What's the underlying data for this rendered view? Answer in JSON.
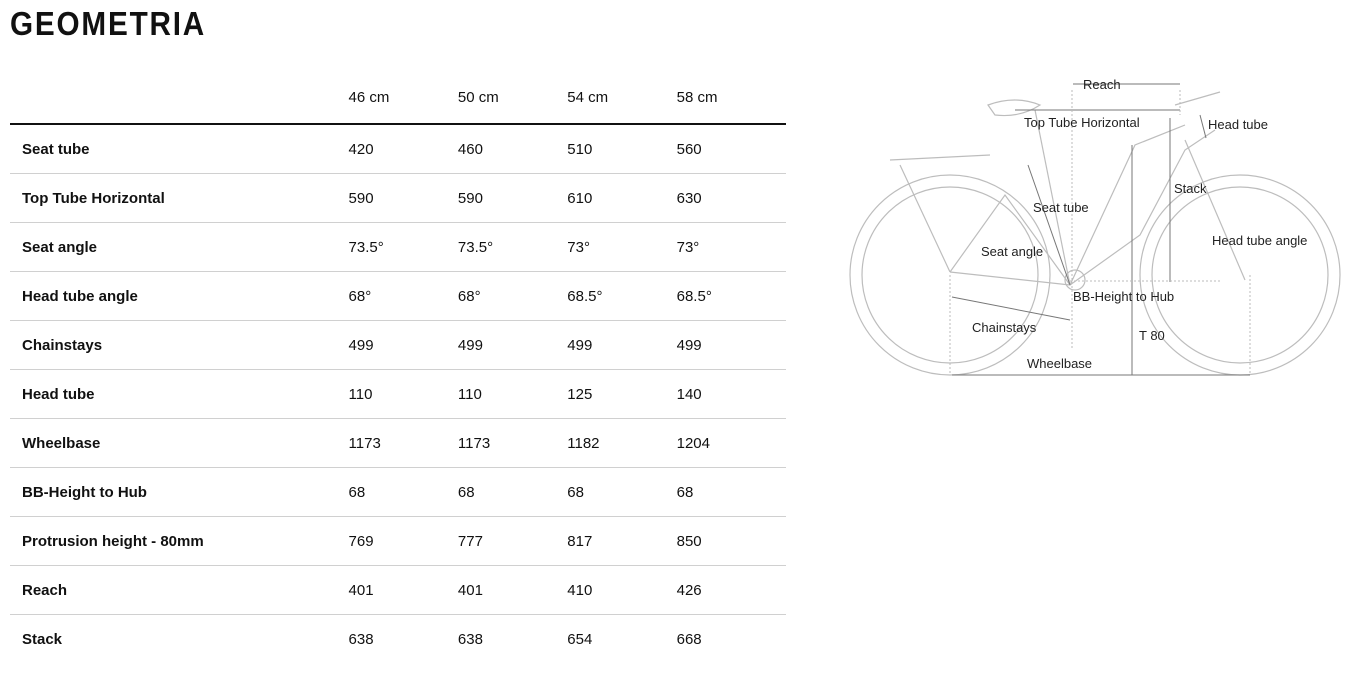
{
  "title": "GEOMETRIA",
  "table": {
    "columns": [
      "",
      "46 cm",
      "50 cm",
      "54 cm",
      "58 cm"
    ],
    "rows": [
      {
        "label": "Seat tube",
        "values": [
          "420",
          "460",
          "510",
          "560"
        ]
      },
      {
        "label": "Top Tube Horizontal",
        "values": [
          "590",
          "590",
          "610",
          "630"
        ]
      },
      {
        "label": "Seat angle",
        "values": [
          "73.5°",
          "73.5°",
          "73°",
          "73°"
        ]
      },
      {
        "label": "Head tube angle",
        "values": [
          "68°",
          "68°",
          "68.5°",
          "68.5°"
        ]
      },
      {
        "label": "Chainstays",
        "values": [
          "499",
          "499",
          "499",
          "499"
        ]
      },
      {
        "label": "Head tube",
        "values": [
          "110",
          "110",
          "125",
          "140"
        ]
      },
      {
        "label": "Wheelbase",
        "values": [
          "1173",
          "1173",
          "1182",
          "1204"
        ]
      },
      {
        "label": "BB-Height to Hub",
        "values": [
          "68",
          "68",
          "68",
          "68"
        ]
      },
      {
        "label": "Protrusion height - 80mm",
        "values": [
          "769",
          "777",
          "817",
          "850"
        ]
      },
      {
        "label": "Reach",
        "values": [
          "401",
          "401",
          "410",
          "426"
        ]
      },
      {
        "label": "Stack",
        "values": [
          "638",
          "638",
          "654",
          "668"
        ]
      }
    ]
  },
  "diagram": {
    "labels": {
      "reach": "Reach",
      "top_tube": "Top Tube Horizontal",
      "head_tube": "Head tube",
      "stack": "Stack",
      "seat_tube": "Seat tube",
      "seat_angle": "Seat angle",
      "head_tube_angle": "Head tube angle",
      "bb_height": "BB-Height to Hub",
      "chainstays": "Chainstays",
      "t80": "T 80",
      "wheelbase": "Wheelbase"
    }
  }
}
